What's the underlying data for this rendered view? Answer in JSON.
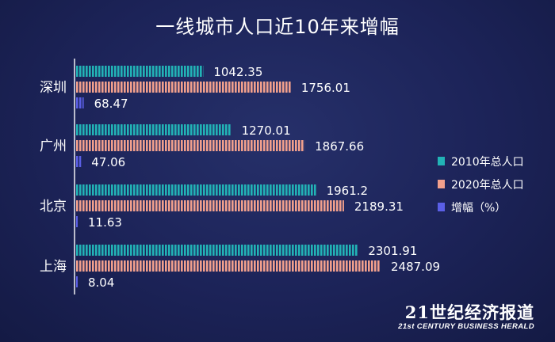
{
  "colors": {
    "s2010": "#22b3b6",
    "s2020": "#f2a08c",
    "growth": "#5b5fe6"
  },
  "chart_data": {
    "type": "bar",
    "orientation": "horizontal",
    "title": "一线城市人口近10年来增幅",
    "categories": [
      "深圳",
      "广州",
      "北京",
      "上海"
    ],
    "series": [
      {
        "name": "2010年总人口",
        "values": [
          1042.35,
          1270.01,
          1961.2,
          2301.91
        ],
        "labels": [
          "1042.35",
          "1270.01",
          "1961.2",
          "2301.91"
        ]
      },
      {
        "name": "2020年总人口",
        "values": [
          1756.01,
          1867.66,
          2189.31,
          2487.09
        ],
        "labels": [
          "1756.01",
          "1867.66",
          "2189.31",
          "2487.09"
        ]
      },
      {
        "name": "增幅（%）",
        "values": [
          68.47,
          47.06,
          11.63,
          8.04
        ],
        "labels": [
          "68.47",
          "47.06",
          "11.63",
          "8.04"
        ]
      }
    ],
    "legend_position": "right",
    "grid": false
  },
  "brand": {
    "name": "21世纪经济报道",
    "tagline": "21st CENTURY BUSINESS HERALD"
  }
}
